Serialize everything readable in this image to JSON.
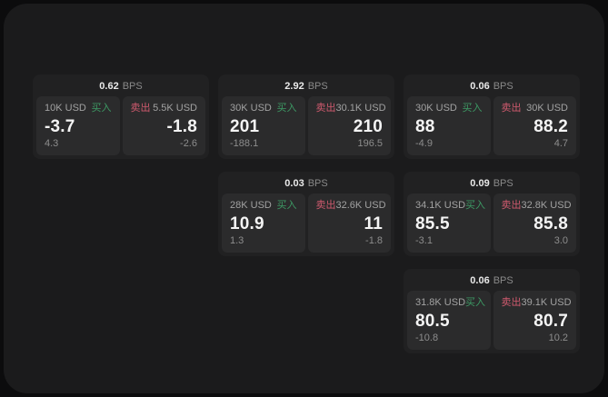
{
  "labels": {
    "bps_unit": "BPS",
    "buy": "买入",
    "sell": "卖出"
  },
  "colors": {
    "buy": "#3d9964",
    "sell": "#cf5a6e",
    "page_bg": "#1b1b1c",
    "card_bg": "#212122",
    "panel_bg": "#2b2b2c"
  },
  "cards": [
    {
      "bps": "0.62",
      "buy": {
        "amount": "10K USD",
        "value": "-3.7",
        "delta": "4.3"
      },
      "sell": {
        "amount": "5.5K USD",
        "value": "-1.8",
        "delta": "-2.6"
      }
    },
    {
      "bps": "2.92",
      "buy": {
        "amount": "30K USD",
        "value": "201",
        "delta": "-188.1"
      },
      "sell": {
        "amount": "30.1K USD",
        "value": "210",
        "delta": "196.5"
      }
    },
    {
      "bps": "0.06",
      "buy": {
        "amount": "30K USD",
        "value": "88",
        "delta": "-4.9"
      },
      "sell": {
        "amount": "30K USD",
        "value": "88.2",
        "delta": "4.7"
      }
    },
    {
      "bps": "0.03",
      "buy": {
        "amount": "28K USD",
        "value": "10.9",
        "delta": "1.3"
      },
      "sell": {
        "amount": "32.6K USD",
        "value": "11",
        "delta": "-1.8"
      }
    },
    {
      "bps": "0.09",
      "buy": {
        "amount": "34.1K USD",
        "value": "85.5",
        "delta": "-3.1"
      },
      "sell": {
        "amount": "32.8K USD",
        "value": "85.8",
        "delta": "3.0"
      }
    },
    {
      "bps": "0.06",
      "buy": {
        "amount": "31.8K USD",
        "value": "80.5",
        "delta": "-10.8"
      },
      "sell": {
        "amount": "39.1K USD",
        "value": "80.7",
        "delta": "10.2"
      }
    }
  ]
}
